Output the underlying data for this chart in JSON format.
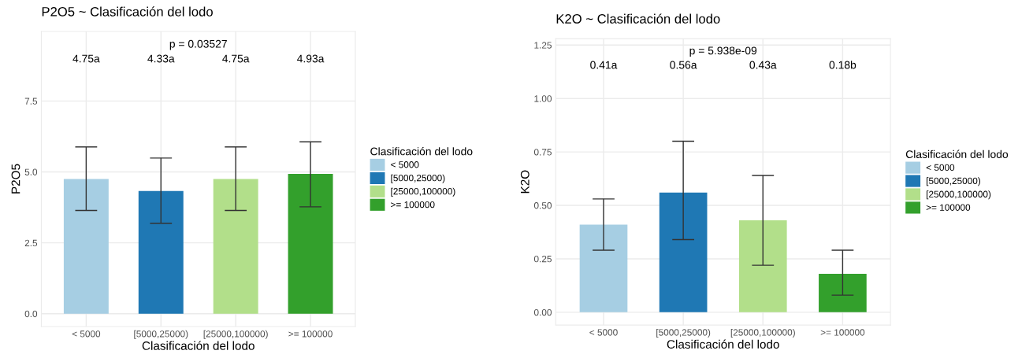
{
  "chart_data": [
    {
      "type": "bar",
      "title": "P2O5 ~ Clasificación del lodo",
      "xlabel": "Clasificación del lodo",
      "ylabel": "P2O5",
      "legend_title": "Clasificación del lodo",
      "categories": [
        "< 5000",
        "[5000,25000)",
        "[25000,100000)",
        ">= 100000"
      ],
      "series": [
        {
          "name": "< 5000",
          "color": "#a6cee3",
          "values": [
            4.75,
            null,
            null,
            null
          ],
          "errors": [
            [
              3.64,
              5.88
            ],
            null,
            null,
            null
          ]
        },
        {
          "name": "[5000,25000)",
          "color": "#1f78b4",
          "values": [
            null,
            4.33,
            null,
            null
          ],
          "errors": [
            null,
            [
              3.19,
              5.49
            ],
            null,
            null
          ]
        },
        {
          "name": "[25000,100000)",
          "color": "#b2df8a",
          "values": [
            null,
            null,
            4.75,
            null
          ],
          "errors": [
            null,
            null,
            [
              3.64,
              5.88
            ],
            null
          ]
        },
        {
          "name": ">= 100000",
          "color": "#33a02c",
          "values": [
            null,
            null,
            null,
            4.93
          ],
          "errors": [
            null,
            null,
            null,
            [
              3.77,
              6.06
            ]
          ]
        }
      ],
      "ylim": [
        -0.45,
        9.95
      ],
      "yticks": [
        {
          "value": 0,
          "label": "0.0"
        },
        2.5,
        {
          "value": 5,
          "label": "5.0"
        },
        7.5
      ],
      "grid": true,
      "legend": "right",
      "annotations": [
        "p = 0.03527",
        "4.75a",
        "4.33a",
        "4.75a",
        "4.93a"
      ]
    },
    {
      "type": "bar",
      "title": "K2O ~ Clasificación del lodo",
      "xlabel": "Clasificación del lodo",
      "ylabel": "K2O",
      "legend_title": "Clasificación del lodo",
      "categories": [
        "< 5000",
        "[5000,25000)",
        "[25000,100000)",
        ">= 100000"
      ],
      "series": [
        {
          "name": "< 5000",
          "color": "#a6cee3",
          "values": [
            0.41,
            null,
            null,
            null
          ],
          "errors": [
            [
              0.29,
              0.53
            ],
            null,
            null,
            null
          ]
        },
        {
          "name": "[5000,25000)",
          "color": "#1f78b4",
          "values": [
            null,
            0.56,
            null,
            null
          ],
          "errors": [
            null,
            [
              0.34,
              0.8
            ],
            null,
            null
          ]
        },
        {
          "name": "[25000,100000)",
          "color": "#b2df8a",
          "values": [
            null,
            null,
            0.43,
            null
          ],
          "errors": [
            null,
            null,
            [
              0.22,
              0.64
            ],
            null
          ]
        },
        {
          "name": ">= 100000",
          "color": "#33a02c",
          "values": [
            null,
            null,
            null,
            0.18
          ],
          "errors": [
            null,
            null,
            null,
            [
              0.08,
              0.29
            ]
          ]
        }
      ],
      "ylim": [
        -0.06,
        1.28
      ],
      "yticks": [
        {
          "value": 0,
          "label": "0.00"
        },
        0.25,
        {
          "value": 0.5,
          "label": "0.50"
        },
        0.75,
        {
          "value": 1,
          "label": "1.00"
        },
        1.25
      ],
      "grid": true,
      "legend": "right",
      "annotations": [
        "p = 5.938e-09",
        "0.41a",
        "0.56a",
        "0.43a",
        "0.18b"
      ]
    }
  ]
}
